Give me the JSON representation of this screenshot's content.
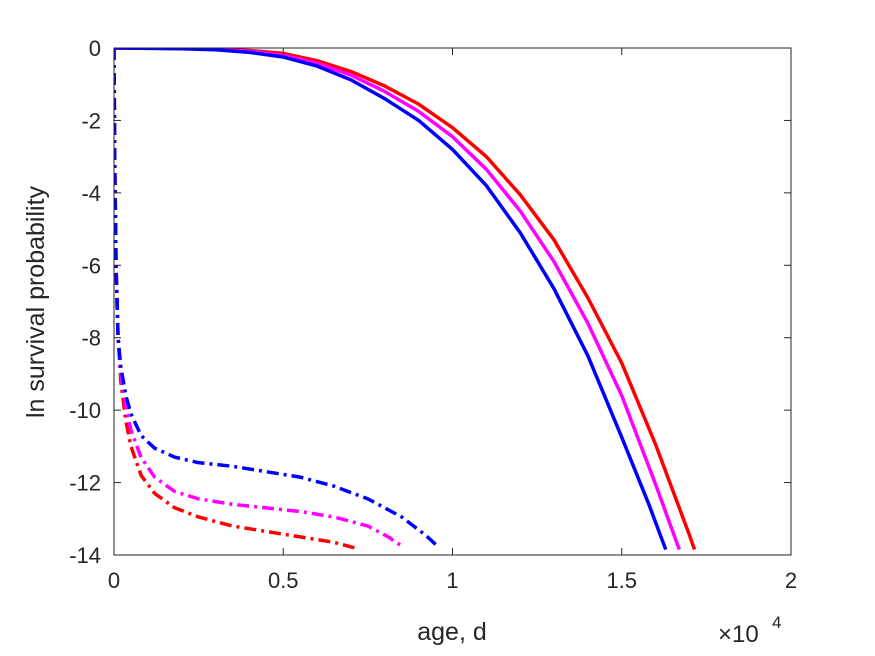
{
  "chart_data": {
    "type": "line",
    "xlabel": "age, d",
    "ylabel": "ln survival probability",
    "x_exponent_label": {
      "base": "×10",
      "power": "4"
    },
    "x_scale": 10000,
    "xlim": [
      0,
      20000
    ],
    "ylim": [
      -14,
      0
    ],
    "xticks": [
      0,
      5000,
      10000,
      15000,
      20000
    ],
    "xtick_labels": [
      "0",
      "0.5",
      "1",
      "1.5",
      "2"
    ],
    "yticks": [
      0,
      -2,
      -4,
      -6,
      -8,
      -10,
      -12,
      -14
    ],
    "ytick_labels": [
      "0",
      "-2",
      "-4",
      "-6",
      "-8",
      "-10",
      "-12",
      "-14"
    ],
    "grid": false,
    "box": true,
    "series": [
      {
        "color": "#ff0000",
        "style": "solid",
        "points": [
          [
            0,
            0
          ],
          [
            2000,
            -0.01
          ],
          [
            3000,
            -0.03
          ],
          [
            4000,
            -0.07
          ],
          [
            5000,
            -0.15
          ],
          [
            6000,
            -0.35
          ],
          [
            7000,
            -0.65
          ],
          [
            8000,
            -1.05
          ],
          [
            9000,
            -1.55
          ],
          [
            10000,
            -2.2
          ],
          [
            11000,
            -3.0
          ],
          [
            12000,
            -4.05
          ],
          [
            13000,
            -5.3
          ],
          [
            14000,
            -6.9
          ],
          [
            15000,
            -8.7
          ],
          [
            16000,
            -10.95
          ],
          [
            17000,
            -13.45
          ],
          [
            17150,
            -13.85
          ]
        ]
      },
      {
        "color": "#ff00ff",
        "style": "solid",
        "points": [
          [
            0,
            0
          ],
          [
            2000,
            -0.01
          ],
          [
            3000,
            -0.04
          ],
          [
            4000,
            -0.09
          ],
          [
            5000,
            -0.2
          ],
          [
            6000,
            -0.42
          ],
          [
            7000,
            -0.75
          ],
          [
            8000,
            -1.2
          ],
          [
            9000,
            -1.75
          ],
          [
            10000,
            -2.45
          ],
          [
            11000,
            -3.35
          ],
          [
            12000,
            -4.5
          ],
          [
            13000,
            -5.9
          ],
          [
            14000,
            -7.6
          ],
          [
            15000,
            -9.6
          ],
          [
            16000,
            -12.05
          ],
          [
            16700,
            -13.85
          ]
        ]
      },
      {
        "color": "#0000ff",
        "style": "solid",
        "points": [
          [
            0,
            0
          ],
          [
            2000,
            -0.02
          ],
          [
            3000,
            -0.05
          ],
          [
            4000,
            -0.12
          ],
          [
            5000,
            -0.25
          ],
          [
            6000,
            -0.5
          ],
          [
            7000,
            -0.88
          ],
          [
            8000,
            -1.4
          ],
          [
            9000,
            -2.0
          ],
          [
            10000,
            -2.8
          ],
          [
            11000,
            -3.8
          ],
          [
            12000,
            -5.1
          ],
          [
            13000,
            -6.65
          ],
          [
            14000,
            -8.5
          ],
          [
            15000,
            -10.75
          ],
          [
            15800,
            -12.6
          ],
          [
            16300,
            -13.85
          ]
        ]
      },
      {
        "color": "#ff0000",
        "style": "dashdot",
        "points": [
          [
            0,
            0
          ],
          [
            20,
            -3
          ],
          [
            60,
            -6
          ],
          [
            120,
            -8
          ],
          [
            200,
            -9.2
          ],
          [
            350,
            -10.3
          ],
          [
            500,
            -11.0
          ],
          [
            800,
            -11.8
          ],
          [
            1200,
            -12.3
          ],
          [
            1800,
            -12.7
          ],
          [
            2500,
            -12.95
          ],
          [
            3500,
            -13.2
          ],
          [
            4500,
            -13.35
          ],
          [
            5500,
            -13.5
          ],
          [
            6500,
            -13.65
          ],
          [
            7100,
            -13.8
          ]
        ]
      },
      {
        "color": "#ff00ff",
        "style": "dashdot",
        "points": [
          [
            0,
            0
          ],
          [
            20,
            -3
          ],
          [
            60,
            -6
          ],
          [
            120,
            -8
          ],
          [
            200,
            -9.0
          ],
          [
            350,
            -9.9
          ],
          [
            500,
            -10.55
          ],
          [
            800,
            -11.3
          ],
          [
            1200,
            -11.85
          ],
          [
            1800,
            -12.25
          ],
          [
            2500,
            -12.45
          ],
          [
            3500,
            -12.6
          ],
          [
            4500,
            -12.7
          ],
          [
            5500,
            -12.8
          ],
          [
            6500,
            -12.95
          ],
          [
            7500,
            -13.2
          ],
          [
            8100,
            -13.5
          ],
          [
            8500,
            -13.75
          ]
        ]
      },
      {
        "color": "#0000ff",
        "style": "dashdot",
        "points": [
          [
            0,
            0
          ],
          [
            20,
            -3
          ],
          [
            60,
            -6
          ],
          [
            120,
            -8
          ],
          [
            200,
            -8.8
          ],
          [
            350,
            -9.6
          ],
          [
            500,
            -10.1
          ],
          [
            800,
            -10.7
          ],
          [
            1200,
            -11.05
          ],
          [
            1800,
            -11.3
          ],
          [
            2500,
            -11.45
          ],
          [
            3500,
            -11.55
          ],
          [
            4500,
            -11.7
          ],
          [
            5500,
            -11.85
          ],
          [
            6500,
            -12.1
          ],
          [
            7500,
            -12.45
          ],
          [
            8500,
            -12.95
          ],
          [
            9200,
            -13.45
          ],
          [
            9550,
            -13.75
          ]
        ]
      }
    ]
  }
}
